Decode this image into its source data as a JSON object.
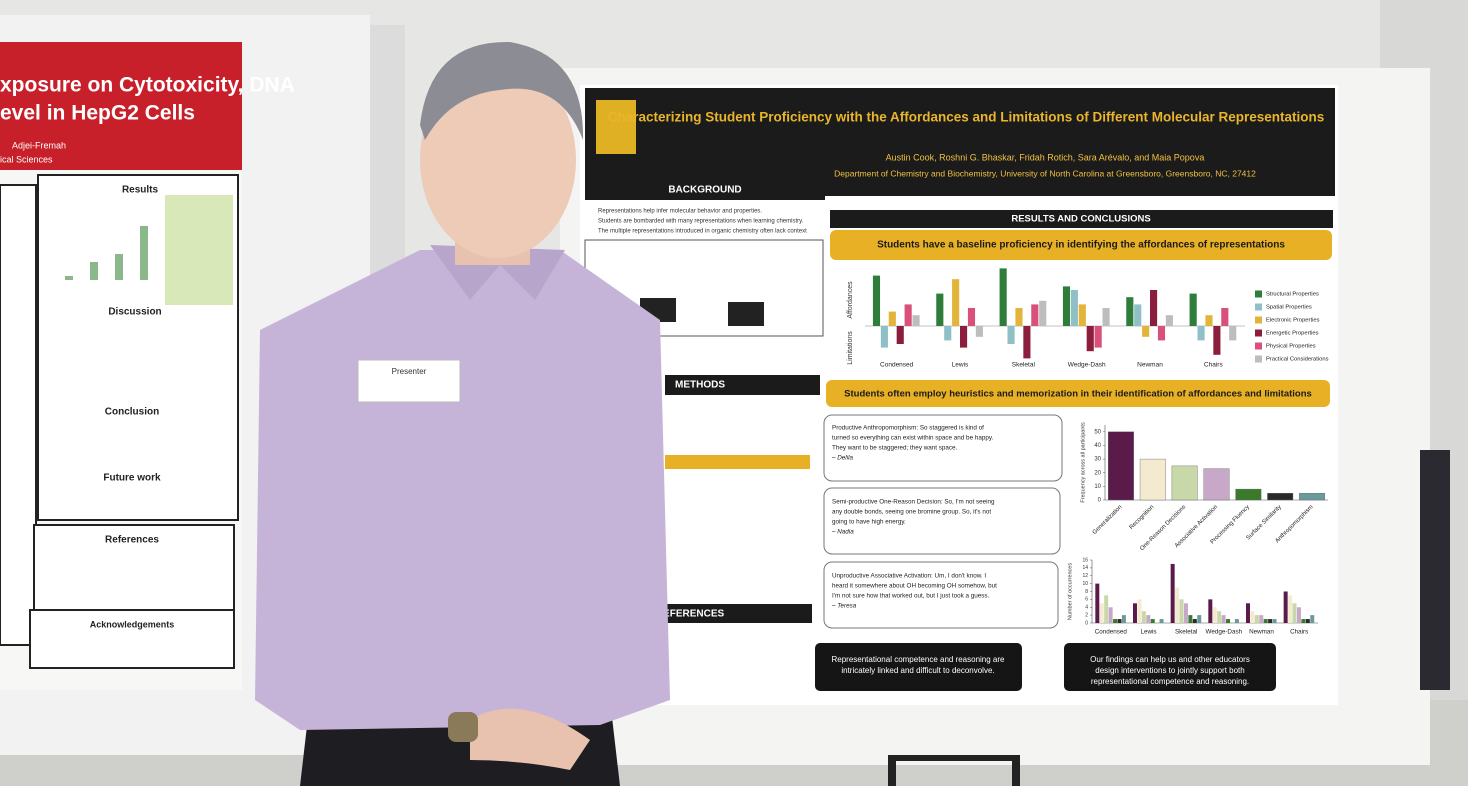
{
  "left_poster": {
    "title_lines": [
      "xposure on Cytotoxicity, DNA",
      "evel in HepG2 Cells"
    ],
    "author": "Adjei-Fremah",
    "department": "ical Sciences",
    "sections": [
      "Results",
      "Discussion",
      "Conclusion",
      "Future work",
      "References",
      "Acknowledgements"
    ]
  },
  "name_tag": {
    "label": "Presenter"
  },
  "main_poster": {
    "title": "Characterizing Student Proficiency with the Affordances and Limitations of Different Molecular Representations",
    "authors": "Austin Cook, Roshni G. Bhaskar, Fridah Rotich, Sara Arévalo, and Maia Popova",
    "affiliation": "Department of Chemistry and Biochemistry, University of North Carolina at Greensboro, Greensboro, NC, 27412",
    "background": {
      "heading": "BACKGROUND",
      "bullets": [
        "Representations help infer molecular behavior and properties.",
        "Students are bombarded with many representations when learning chemistry.",
        "The multiple representations introduced in organic chemistry often lack context"
      ]
    },
    "methods_heading": "METHODS",
    "references_heading": "REFERENCES",
    "results_heading": "RESULTS AND CONCLUSIONS",
    "banner1": "Students have a baseline proficiency in identifying the affordances of representations",
    "chart1": {
      "type": "bar",
      "axis_up": "Affordances",
      "axis_down": "Limitations",
      "categories": [
        "Condensed",
        "Lewis",
        "Skeletal",
        "Wedge-Dash",
        "Newman",
        "Chairs"
      ],
      "series": [
        {
          "name": "Structural Properties",
          "color": "#2e7d3a",
          "values": [
            14,
            9,
            16,
            11,
            8,
            9
          ]
        },
        {
          "name": "Spatial Properties",
          "color": "#8fc0c8",
          "values": [
            -6,
            -4,
            -5,
            10,
            6,
            -4
          ]
        },
        {
          "name": "Electronic Properties",
          "color": "#e2b43a",
          "values": [
            4,
            13,
            5,
            6,
            -3,
            3
          ]
        },
        {
          "name": "Energetic Properties",
          "color": "#8a1e3c",
          "values": [
            -5,
            -6,
            -9,
            -7,
            10,
            -8
          ]
        },
        {
          "name": "Physical Properties",
          "color": "#d9507a",
          "values": [
            6,
            5,
            6,
            -6,
            -4,
            5
          ]
        },
        {
          "name": "Practical Considerations",
          "color": "#bdbdbd",
          "values": [
            3,
            -3,
            7,
            5,
            3,
            -4
          ]
        }
      ]
    },
    "banner2": "Students often employ heuristics and memorization in their identification of affordances and limitations",
    "quotes": [
      {
        "lines": [
          "Productive Anthropomorphism: So staggered is kind of",
          "turned so everything can exist within space and be happy.",
          "They want to be staggered; they want space."
        ],
        "speaker": "– Delila"
      },
      {
        "lines": [
          "Semi-productive One-Reason Decision: So, I'm not seeing",
          "any double bonds, seeing one bromine group. So, it's not",
          "going to have high energy."
        ],
        "speaker": "– Nadia"
      },
      {
        "lines": [
          "Unproductive Associative Activation: Um, I don't know. I",
          "heard it somewhere about OH becoming OH somehow, but",
          "I'm not sure how that worked out, but I just took a guess."
        ],
        "speaker": "– Teresa"
      }
    ],
    "chart2": {
      "type": "bar",
      "y_label": "Frequency across all participants",
      "categories": [
        "Generalization",
        "Recognition",
        "One-Reason Decisions",
        "Associative Activation",
        "Processing Fluency",
        "Surface Similarity",
        "Anthropomorphism"
      ],
      "colors": [
        "#5a1a4a",
        "#f3ead0",
        "#c8d8a8",
        "#c8a8c8",
        "#3a7a2a",
        "#2a2a2a",
        "#6a9a9a"
      ],
      "values": [
        50,
        30,
        25,
        23,
        8,
        5,
        5
      ],
      "ylim": [
        0,
        55
      ],
      "yticks": [
        0,
        10,
        20,
        30,
        40,
        50
      ]
    },
    "chart3": {
      "type": "bar",
      "y_label": "Number of occurrences",
      "categories": [
        "Condensed",
        "Lewis",
        "Skeletal",
        "Wedge-Dash",
        "Newman",
        "Chairs"
      ],
      "series": [
        {
          "color": "#5a1a4a",
          "values": [
            10,
            5,
            15,
            6,
            5,
            8
          ]
        },
        {
          "color": "#f3ead0",
          "values": [
            5,
            6,
            9,
            4,
            3,
            7
          ]
        },
        {
          "color": "#c8d8a8",
          "values": [
            7,
            3,
            6,
            3,
            2,
            5
          ]
        },
        {
          "color": "#c8a8c8",
          "values": [
            4,
            2,
            5,
            2,
            2,
            4
          ]
        },
        {
          "color": "#3a7a2a",
          "values": [
            1,
            1,
            2,
            1,
            1,
            1
          ]
        },
        {
          "color": "#2a2a2a",
          "values": [
            1,
            0,
            1,
            0,
            1,
            1
          ]
        },
        {
          "color": "#6a9a9a",
          "values": [
            2,
            1,
            2,
            1,
            1,
            2
          ]
        }
      ],
      "ylim": [
        0,
        16
      ],
      "yticks": [
        0,
        2,
        4,
        6,
        8,
        10,
        12,
        14,
        16
      ]
    },
    "conclusions": [
      "Representational competence and reasoning are intricately linked and difficult to deconvolve.",
      "Our findings can help us and other educators design interventions to jointly support both representational competence and reasoning."
    ]
  }
}
